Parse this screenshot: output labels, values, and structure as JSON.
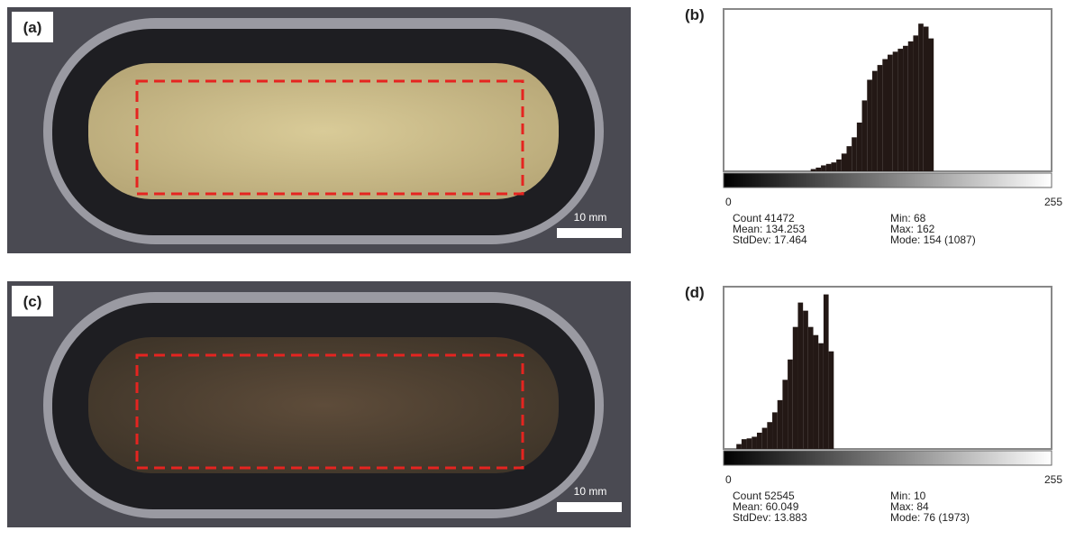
{
  "panels": [
    {
      "label": "(a)",
      "scale_bar": "10 mm"
    },
    {
      "label": "(c)",
      "scale_bar": "10 mm"
    }
  ],
  "histograms": [
    {
      "label": "(b)",
      "x_labels": [
        "0",
        "255"
      ],
      "xlim": [
        0,
        256
      ],
      "bin_width": 4,
      "ylim": [
        0,
        1087
      ],
      "x": [
        68,
        72,
        76,
        80,
        84,
        88,
        92,
        96,
        100,
        104,
        108,
        112,
        116,
        120,
        124,
        128,
        132,
        136,
        140,
        144,
        148,
        152,
        156,
        160
      ],
      "values": [
        15,
        25,
        40,
        50,
        60,
        80,
        120,
        170,
        230,
        330,
        480,
        620,
        680,
        720,
        760,
        790,
        810,
        830,
        850,
        880,
        920,
        1000,
        980,
        900
      ],
      "stats": [
        "Count 41472",
        "Mean: 134.253",
        "StdDev: 17.464",
        "Min: 68",
        "Max: 162",
        "Mode: 154 (1087)"
      ]
    },
    {
      "label": "(d)",
      "x_labels": [
        "0",
        "255"
      ],
      "xlim": [
        0,
        256
      ],
      "bin_width": 4,
      "ylim": [
        0,
        1973
      ],
      "x": [
        10,
        14,
        18,
        22,
        26,
        30,
        34,
        38,
        42,
        46,
        50,
        54,
        58,
        62,
        66,
        70,
        74,
        78,
        82
      ],
      "values": [
        60,
        120,
        130,
        150,
        200,
        260,
        330,
        450,
        600,
        850,
        1100,
        1500,
        1800,
        1700,
        1500,
        1400,
        1300,
        1900,
        1200
      ],
      "stats": [
        "Count 52545",
        "Mean: 60.049",
        "StdDev: 13.883",
        "Min: 10",
        "Max: 84",
        "Mode: 76 (1973)"
      ]
    }
  ]
}
